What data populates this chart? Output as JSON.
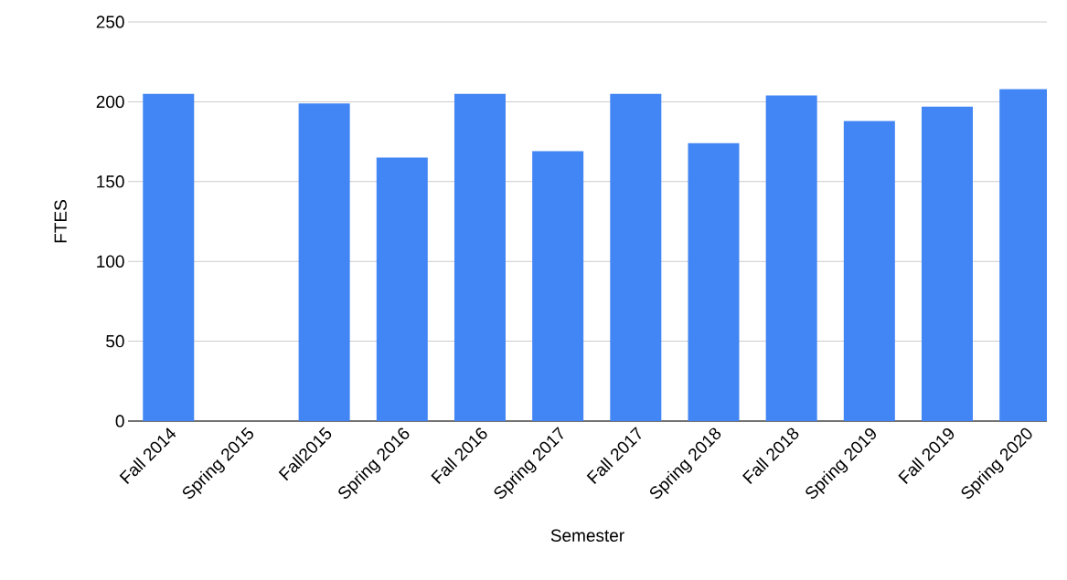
{
  "chart_data": {
    "type": "bar",
    "xlabel": "Semester",
    "ylabel": "FTES",
    "categories": [
      "Fall 2014",
      "Spring 2015",
      "Fall2015",
      "Spring 2016",
      "Fall 2016",
      "Spring 2017",
      "Fall 2017",
      "Spring 2018",
      "Fall 2018",
      "Spring 2019",
      "Fall 2019",
      "Spring 2020"
    ],
    "values": [
      205,
      null,
      199,
      165,
      205,
      169,
      205,
      174,
      204,
      188,
      197,
      208
    ],
    "color": "#4285f4",
    "ylim": [
      0,
      250
    ],
    "yticks": [
      0,
      50,
      100,
      150,
      200,
      250
    ],
    "grid": "y"
  }
}
